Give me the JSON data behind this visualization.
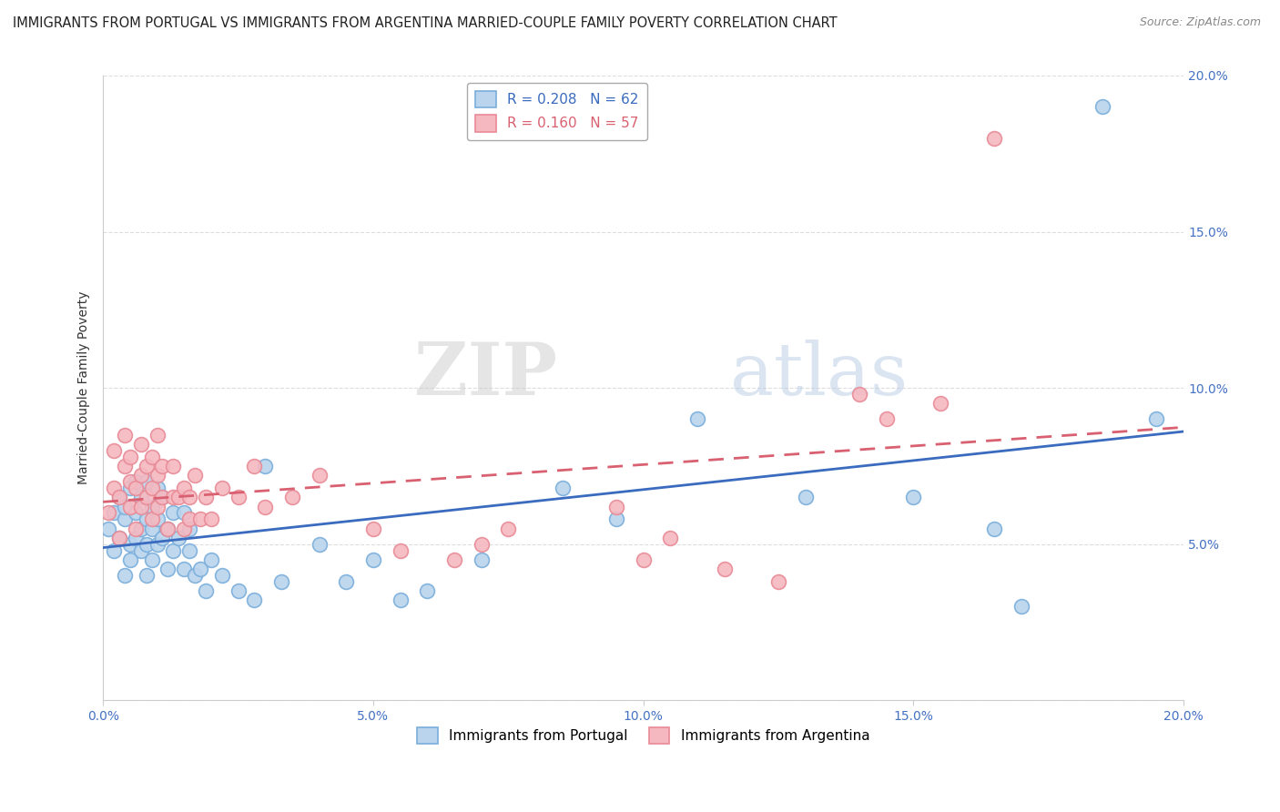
{
  "title": "IMMIGRANTS FROM PORTUGAL VS IMMIGRANTS FROM ARGENTINA MARRIED-COUPLE FAMILY POVERTY CORRELATION CHART",
  "source": "Source: ZipAtlas.com",
  "ylabel": "Married-Couple Family Poverty",
  "xlim": [
    0.0,
    0.2
  ],
  "ylim": [
    0.0,
    0.2
  ],
  "xticks": [
    0.0,
    0.05,
    0.1,
    0.15,
    0.2
  ],
  "yticks": [
    0.0,
    0.05,
    0.1,
    0.15,
    0.2
  ],
  "legend_labels": [
    "Immigrants from Portugal",
    "Immigrants from Argentina"
  ],
  "legend_r": [
    0.208,
    0.16
  ],
  "legend_n": [
    62,
    57
  ],
  "portugal_color": "#bad4ed",
  "argentina_color": "#f5b8c0",
  "portugal_edge": "#7aaedb",
  "argentina_edge": "#e88a96",
  "portugal_line_color": "#3a6bbf",
  "argentina_line_color": "#d96070",
  "ytick_color": "#4472c4",
  "xtick_color": "#4472c4",
  "watermark_zip": "ZIP",
  "watermark_atlas": "atlas",
  "grid_color": "#dddddd",
  "portugal_x": [
    0.001,
    0.002,
    0.002,
    0.003,
    0.003,
    0.004,
    0.004,
    0.004,
    0.005,
    0.005,
    0.005,
    0.006,
    0.006,
    0.006,
    0.007,
    0.007,
    0.007,
    0.008,
    0.008,
    0.008,
    0.008,
    0.009,
    0.009,
    0.009,
    0.01,
    0.01,
    0.01,
    0.011,
    0.011,
    0.012,
    0.012,
    0.013,
    0.013,
    0.014,
    0.015,
    0.015,
    0.016,
    0.016,
    0.017,
    0.018,
    0.019,
    0.02,
    0.022,
    0.025,
    0.028,
    0.03,
    0.033,
    0.04,
    0.045,
    0.05,
    0.055,
    0.06,
    0.07,
    0.085,
    0.095,
    0.11,
    0.13,
    0.15,
    0.165,
    0.17,
    0.185,
    0.195
  ],
  "portugal_y": [
    0.055,
    0.06,
    0.048,
    0.052,
    0.065,
    0.04,
    0.058,
    0.062,
    0.045,
    0.05,
    0.068,
    0.052,
    0.06,
    0.07,
    0.048,
    0.055,
    0.065,
    0.04,
    0.05,
    0.058,
    0.07,
    0.045,
    0.055,
    0.062,
    0.05,
    0.058,
    0.068,
    0.052,
    0.065,
    0.042,
    0.055,
    0.048,
    0.06,
    0.052,
    0.042,
    0.06,
    0.048,
    0.055,
    0.04,
    0.042,
    0.035,
    0.045,
    0.04,
    0.035,
    0.032,
    0.075,
    0.038,
    0.05,
    0.038,
    0.045,
    0.032,
    0.035,
    0.045,
    0.068,
    0.058,
    0.09,
    0.065,
    0.065,
    0.055,
    0.03,
    0.19,
    0.09
  ],
  "argentina_x": [
    0.001,
    0.002,
    0.002,
    0.003,
    0.003,
    0.004,
    0.004,
    0.005,
    0.005,
    0.005,
    0.006,
    0.006,
    0.007,
    0.007,
    0.007,
    0.008,
    0.008,
    0.009,
    0.009,
    0.009,
    0.01,
    0.01,
    0.01,
    0.011,
    0.011,
    0.012,
    0.013,
    0.013,
    0.014,
    0.015,
    0.015,
    0.016,
    0.016,
    0.017,
    0.018,
    0.019,
    0.02,
    0.022,
    0.025,
    0.028,
    0.03,
    0.035,
    0.04,
    0.05,
    0.055,
    0.065,
    0.07,
    0.075,
    0.095,
    0.1,
    0.105,
    0.115,
    0.125,
    0.14,
    0.145,
    0.155,
    0.165
  ],
  "argentina_y": [
    0.06,
    0.068,
    0.08,
    0.052,
    0.065,
    0.075,
    0.085,
    0.07,
    0.062,
    0.078,
    0.055,
    0.068,
    0.062,
    0.072,
    0.082,
    0.065,
    0.075,
    0.058,
    0.068,
    0.078,
    0.062,
    0.072,
    0.085,
    0.065,
    0.075,
    0.055,
    0.065,
    0.075,
    0.065,
    0.055,
    0.068,
    0.058,
    0.065,
    0.072,
    0.058,
    0.065,
    0.058,
    0.068,
    0.065,
    0.075,
    0.062,
    0.065,
    0.072,
    0.055,
    0.048,
    0.045,
    0.05,
    0.055,
    0.062,
    0.045,
    0.052,
    0.042,
    0.038,
    0.098,
    0.09,
    0.095,
    0.18
  ]
}
